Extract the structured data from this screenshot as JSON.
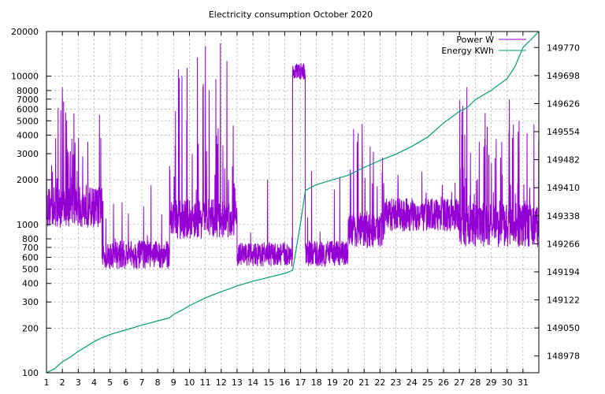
{
  "chart_data": {
    "type": "line",
    "title": "Electricity consumption October 2020",
    "legend_position": "top-right",
    "grid": true,
    "x": {
      "label": "",
      "range": [
        1,
        32
      ],
      "ticks": [
        1,
        2,
        3,
        4,
        5,
        6,
        7,
        8,
        9,
        10,
        11,
        12,
        13,
        14,
        15,
        16,
        17,
        18,
        19,
        20,
        21,
        22,
        23,
        24,
        25,
        26,
        27,
        28,
        29,
        30,
        31
      ],
      "tick_labels": [
        "1",
        "2",
        "3",
        "4",
        "5",
        "6",
        "7",
        "8",
        "9",
        "10",
        "11",
        "12",
        "13",
        "14",
        "15",
        "16",
        "17",
        "18",
        "19",
        "20",
        "21",
        "22",
        "23",
        "24",
        "25",
        "26",
        "27",
        "28",
        "29",
        "30",
        "31"
      ]
    },
    "y_left": {
      "label": "",
      "scale": "log",
      "range": [
        100,
        20000
      ],
      "ticks": [
        100,
        200,
        300,
        400,
        500,
        600,
        700,
        800,
        1000,
        2000,
        3000,
        4000,
        5000,
        6000,
        7000,
        8000,
        10000,
        20000
      ],
      "tick_labels": [
        "100",
        "200",
        "300",
        "400",
        "500",
        "600",
        "700",
        "800",
        "1000",
        "2000",
        "3000",
        "4000",
        "5000",
        "6000",
        "7000",
        "8000",
        "10000",
        "20000"
      ]
    },
    "y_right": {
      "label": "",
      "scale": "linear",
      "range": [
        148935,
        149811
      ],
      "ticks": [
        148978,
        149050,
        149122,
        149194,
        149266,
        149338,
        149410,
        149482,
        149554,
        149626,
        149698,
        149770
      ],
      "tick_labels": [
        "148978",
        "149050",
        "149122",
        "149194",
        "149266",
        "149338",
        "149410",
        "149482",
        "149554",
        "149626",
        "149698",
        "149770"
      ]
    },
    "series": [
      {
        "name": "Power W",
        "color": "#9400d3",
        "axis": "left",
        "segments": [
          {
            "x0": 1.0,
            "x1": 4.5,
            "base_lo": 950,
            "base_hi": 1800,
            "peak": 9000,
            "spike_rate": 0.45
          },
          {
            "x0": 4.5,
            "x1": 8.75,
            "base_lo": 500,
            "base_hi": 780,
            "peak": 2300,
            "spike_rate": 0.08
          },
          {
            "x0": 8.75,
            "x1": 13.0,
            "base_lo": 800,
            "base_hi": 1500,
            "peak": 18000,
            "spike_rate": 0.4
          },
          {
            "x0": 13.0,
            "x1": 16.5,
            "base_lo": 520,
            "base_hi": 760,
            "peak": 2300,
            "spike_rate": 0.1
          },
          {
            "x0": 16.5,
            "x1": 17.3,
            "base_lo": 9500,
            "base_hi": 12200,
            "peak": 12200,
            "spike_rate": 0.0
          },
          {
            "x0": 17.3,
            "x1": 20.0,
            "base_lo": 520,
            "base_hi": 780,
            "peak": 2500,
            "spike_rate": 0.08
          },
          {
            "x0": 20.0,
            "x1": 22.3,
            "base_lo": 700,
            "base_hi": 1200,
            "peak": 6000,
            "spike_rate": 0.35
          },
          {
            "x0": 22.3,
            "x1": 27.0,
            "base_lo": 900,
            "base_hi": 1500,
            "peak": 2600,
            "spike_rate": 0.1
          },
          {
            "x0": 27.0,
            "x1": 32.0,
            "base_lo": 700,
            "base_hi": 1400,
            "peak": 9000,
            "spike_rate": 0.45
          }
        ]
      },
      {
        "name": "Energy KWh",
        "color": "#009e73",
        "axis": "right",
        "points": [
          [
            1.0,
            148935
          ],
          [
            1.5,
            148945
          ],
          [
            2.0,
            148963
          ],
          [
            2.5,
            148975
          ],
          [
            3.0,
            148990
          ],
          [
            3.5,
            149002
          ],
          [
            4.0,
            149015
          ],
          [
            4.5,
            149025
          ],
          [
            5.0,
            149033
          ],
          [
            6.0,
            149045
          ],
          [
            7.0,
            149057
          ],
          [
            8.0,
            149068
          ],
          [
            8.75,
            149076
          ],
          [
            9.0,
            149085
          ],
          [
            9.5,
            149095
          ],
          [
            10.0,
            149107
          ],
          [
            11.0,
            149127
          ],
          [
            12.0,
            149143
          ],
          [
            12.5,
            149150
          ],
          [
            13.0,
            149158
          ],
          [
            14.0,
            149170
          ],
          [
            15.0,
            149180
          ],
          [
            16.0,
            149190
          ],
          [
            16.5,
            149198
          ],
          [
            17.0,
            149320
          ],
          [
            17.3,
            149403
          ],
          [
            18.0,
            149418
          ],
          [
            19.0,
            149430
          ],
          [
            20.0,
            149442
          ],
          [
            21.0,
            149462
          ],
          [
            22.0,
            149480
          ],
          [
            23.0,
            149496
          ],
          [
            24.0,
            149516
          ],
          [
            25.0,
            149540
          ],
          [
            26.0,
            149576
          ],
          [
            27.0,
            149606
          ],
          [
            27.5,
            149616
          ],
          [
            28.0,
            149636
          ],
          [
            29.0,
            149660
          ],
          [
            30.0,
            149690
          ],
          [
            30.5,
            149721
          ],
          [
            31.0,
            149770
          ],
          [
            31.5,
            149790
          ],
          [
            32.0,
            149811
          ]
        ]
      }
    ]
  }
}
